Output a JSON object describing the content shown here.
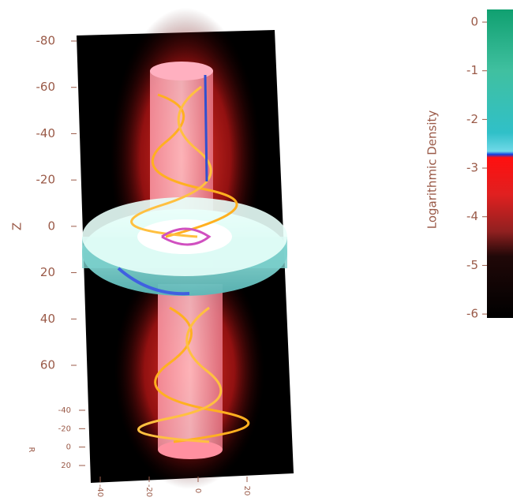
{
  "chart_data": {
    "type": "volume",
    "zlabel": "Z",
    "zticks": [
      -80,
      -60,
      -40,
      -20,
      0,
      20,
      40,
      60
    ],
    "zlim": [
      -80,
      60
    ],
    "rlabel": "R",
    "rticks": [
      -40,
      -20,
      0,
      20
    ],
    "rlim": [
      -40,
      20
    ],
    "xticks": [
      -40,
      -20,
      0,
      20
    ],
    "xlim": [
      -40,
      20
    ],
    "colorbar": {
      "label": "Logarithmic Density",
      "ticks": [
        0,
        -1,
        -2,
        -3,
        -4,
        -5,
        -6
      ],
      "lim": [
        -6.08,
        0.26
      ]
    }
  }
}
